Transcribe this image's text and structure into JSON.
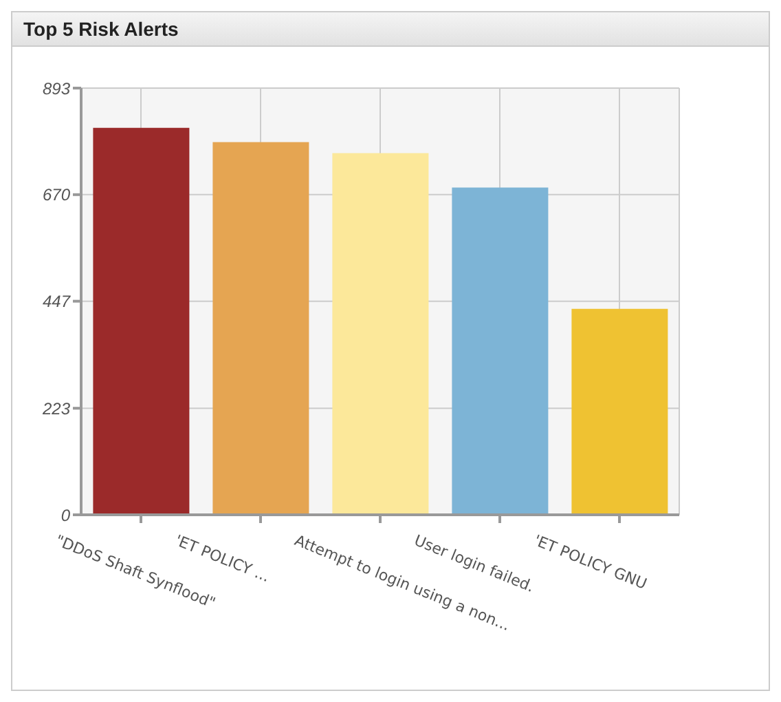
{
  "chart_data": {
    "type": "bar",
    "title": "Top 5 Risk Alerts",
    "categories": [
      "\"DDoS Shaft Synflood\"",
      "'ET POLICY ...",
      "Attempt to login using a non...",
      "User login failed.",
      "'ET POLICY GNU"
    ],
    "values": [
      810,
      780,
      757,
      685,
      431
    ],
    "colors": [
      "#9b2a2a",
      "#e5a552",
      "#fce89a",
      "#7db4d6",
      "#efc232"
    ],
    "ylim": [
      0,
      893
    ],
    "yticks": [
      0,
      223,
      447,
      670,
      893
    ],
    "grid": true
  }
}
